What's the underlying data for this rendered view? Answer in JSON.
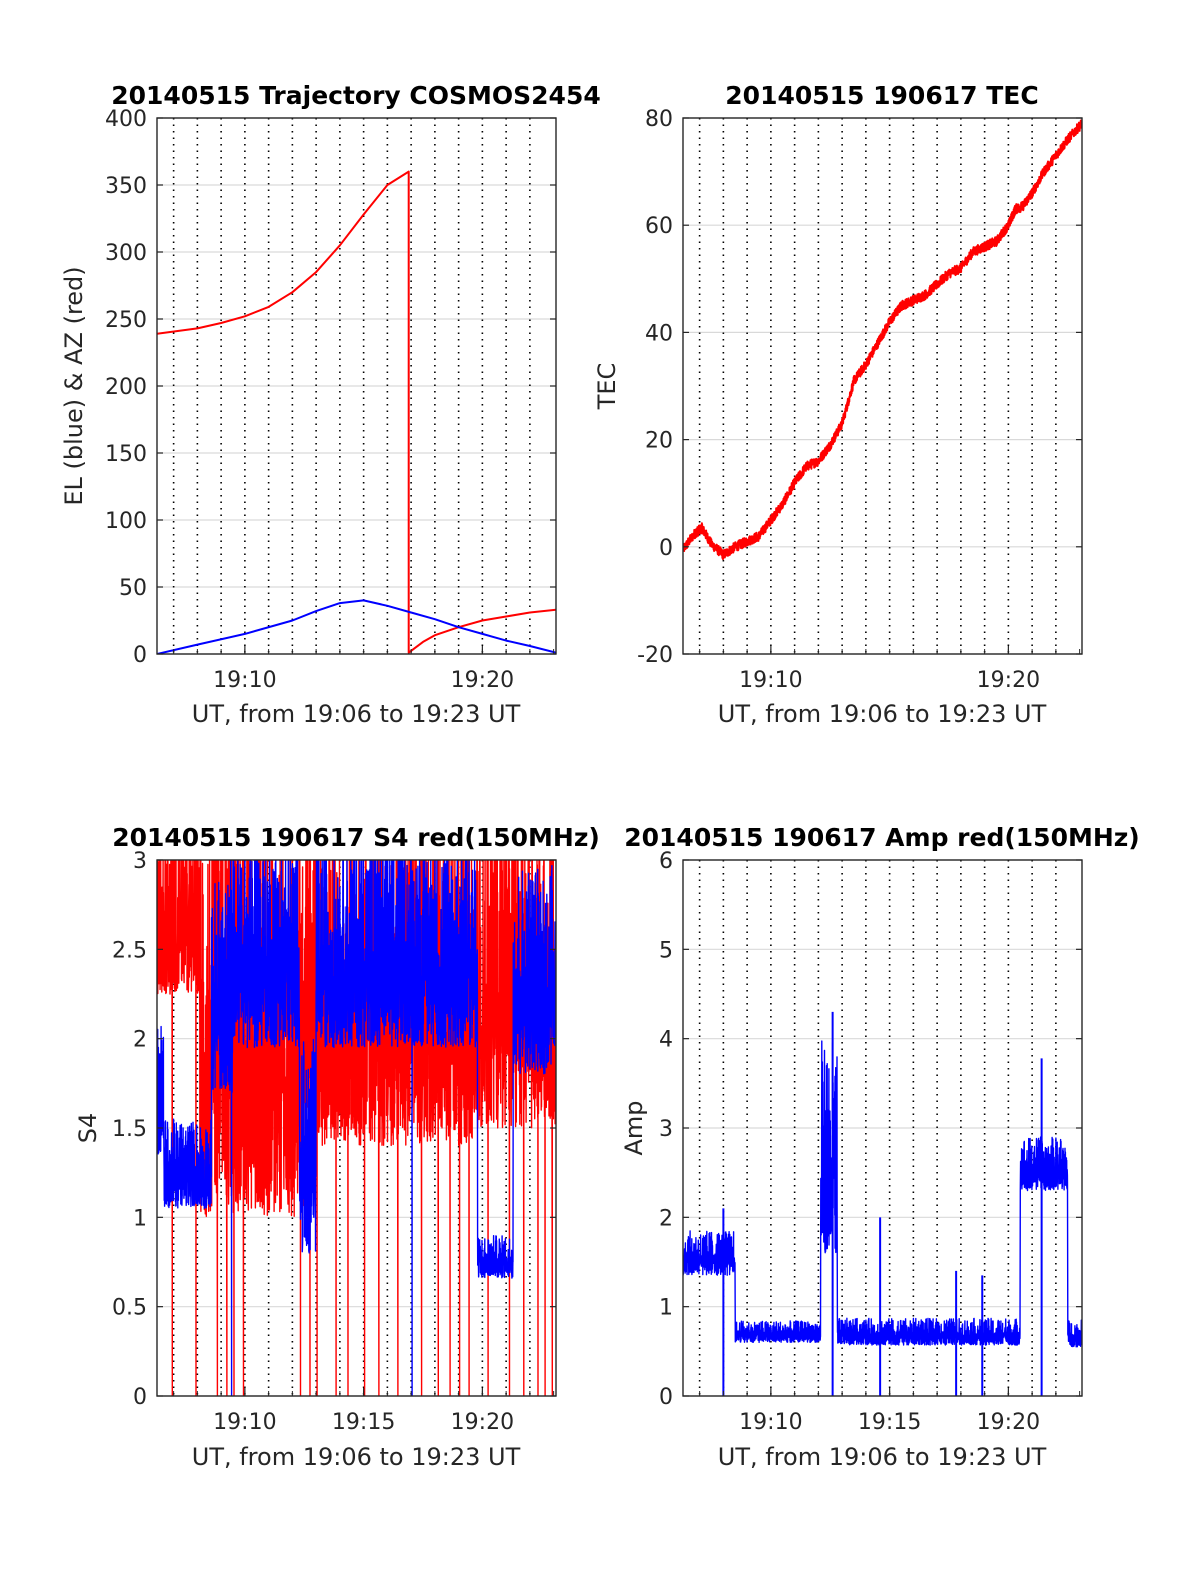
{
  "colors": {
    "red": "#ff0000",
    "blue": "#0000ff",
    "grid": "#d9d9d9",
    "axis": "#262626"
  },
  "chart_data": [
    {
      "id": "traj",
      "type": "line",
      "title": "20140515 Trajectory COSMOS2454",
      "xlabel": "UT, from 19:06 to 19:23 UT",
      "ylabel": "EL (blue) & AZ (red)",
      "xlim": [
        6.3,
        23.1
      ],
      "ylim": [
        0,
        400
      ],
      "yticks": [
        0,
        50,
        100,
        150,
        200,
        250,
        300,
        350,
        400
      ],
      "ytick_labels": [
        "0",
        "50",
        "100",
        "150",
        "200",
        "250",
        "300",
        "350",
        "400"
      ],
      "xticks": [
        10,
        20
      ],
      "xtick_labels": [
        "19:10",
        "19:20"
      ],
      "dotted_x": [
        7,
        8,
        9,
        10,
        11,
        12,
        13,
        14,
        15,
        16,
        17,
        18,
        19,
        20,
        21,
        22
      ],
      "grid": true,
      "series": [
        {
          "color": "red",
          "x": [
            6.3,
            8,
            9,
            10,
            11,
            12,
            13,
            14,
            15,
            16,
            16.9,
            16.9,
            17.5,
            18,
            19,
            20,
            21,
            22,
            23.1
          ],
          "y": [
            239,
            243,
            247,
            252,
            259,
            270,
            285,
            305,
            328,
            350,
            360,
            1,
            9,
            14,
            20,
            25,
            28,
            31,
            33
          ]
        },
        {
          "color": "blue",
          "x": [
            6.3,
            8,
            10,
            12,
            13,
            14,
            15,
            16,
            17,
            18,
            19,
            20,
            21,
            22,
            23.1
          ],
          "y": [
            0,
            7,
            15,
            25,
            32,
            38,
            40,
            36,
            31,
            26,
            20,
            15,
            10,
            6,
            1
          ]
        }
      ]
    },
    {
      "id": "tec",
      "type": "line",
      "title": "20140515 190617 TEC",
      "xlabel": "UT, from 19:06 to 19:23 UT",
      "ylabel": "TEC",
      "xlim": [
        6.3,
        23.1
      ],
      "ylim": [
        -20,
        80
      ],
      "yticks": [
        -20,
        0,
        20,
        40,
        60,
        80
      ],
      "ytick_labels": [
        "-20",
        "0",
        "20",
        "40",
        "60",
        "80"
      ],
      "xticks": [
        10,
        20
      ],
      "xtick_labels": [
        "19:10",
        "19:20"
      ],
      "dotted_x": [
        7,
        8,
        9,
        10,
        11,
        12,
        13,
        14,
        15,
        16,
        17,
        18,
        19,
        20,
        21,
        22
      ],
      "grid": true,
      "noise": 0.9,
      "series": [
        {
          "color": "red",
          "x": [
            6.3,
            6.8,
            7.1,
            7.5,
            8.0,
            8.5,
            9.0,
            9.5,
            10.0,
            10.5,
            11.0,
            11.5,
            12.0,
            12.5,
            13.0,
            13.5,
            14.0,
            14.5,
            15.0,
            15.5,
            16.0,
            16.5,
            17.0,
            17.5,
            18.0,
            18.5,
            19.0,
            19.5,
            20.0,
            20.3,
            20.6,
            21.0,
            21.5,
            22.0,
            22.5,
            23.1
          ],
          "y": [
            -0.5,
            2.5,
            3.5,
            0.5,
            -1.5,
            0,
            1,
            2,
            5,
            8,
            12,
            15,
            16,
            19,
            23,
            31,
            34,
            38,
            42,
            45,
            46,
            47,
            49,
            51,
            52,
            55,
            56,
            57,
            60,
            63,
            63.5,
            66,
            70,
            73,
            76,
            79
          ]
        }
      ]
    },
    {
      "id": "s4",
      "type": "line",
      "title": "20140515 190617 S4 red(150MHz)",
      "xlabel": "UT, from 19:06 to 19:23 UT",
      "ylabel": "S4",
      "xlim": [
        6.3,
        23.1
      ],
      "ylim": [
        0,
        3
      ],
      "yticks": [
        0,
        0.5,
        1,
        1.5,
        2,
        2.5,
        3
      ],
      "ytick_labels": [
        "0",
        "0.5",
        "1",
        "1.5",
        "2",
        "2.5",
        "3"
      ],
      "xticks": [
        10,
        15,
        20
      ],
      "xtick_labels": [
        "19:10",
        "19:15",
        "19:20"
      ],
      "dotted_x": [
        7,
        8,
        9,
        10,
        11,
        12,
        13,
        14,
        15,
        16,
        17,
        18,
        19,
        20,
        21,
        22
      ],
      "grid": true,
      "series": [
        {
          "color": "red",
          "segments": [
            {
              "x": [
                6.3,
                8.1
              ],
              "level": 2.75,
              "spread": 0.5
            },
            {
              "x": [
                8.1,
                12.5
              ],
              "level": 2.2,
              "spread": 1.2
            },
            {
              "x": [
                12.5,
                16.8
              ],
              "level": 2.3,
              "spread": 0.9
            },
            {
              "x": [
                16.8,
                19.8
              ],
              "level": 2.4,
              "spread": 1.0
            },
            {
              "x": [
                19.8,
                23.1
              ],
              "level": 2.4,
              "spread": 0.9
            }
          ],
          "drops": [
            6.9,
            7.9,
            8.8,
            9.2,
            9.5,
            9.9,
            12.3,
            12.7,
            13.0,
            13.8,
            14.3,
            15.0,
            15.6,
            16.4,
            17.4,
            18.1,
            18.6,
            19.0,
            19.4,
            20.2,
            21.1,
            21.7,
            22.3,
            22.6,
            22.9
          ]
        },
        {
          "color": "blue",
          "segments": [
            {
              "x": [
                6.3,
                6.6
              ],
              "level": 1.7,
              "spread": 0.4
            },
            {
              "x": [
                6.6,
                8.6
              ],
              "level": 1.3,
              "spread": 0.25
            },
            {
              "x": [
                8.6,
                9.5
              ],
              "level": 2.3,
              "spread": 0.6
            },
            {
              "x": [
                9.5,
                12.3
              ],
              "level": 2.55,
              "spread": 0.6
            },
            {
              "x": [
                12.3,
                13.0
              ],
              "level": 1.4,
              "spread": 0.6
            },
            {
              "x": [
                13.0,
                19.8
              ],
              "level": 2.55,
              "spread": 0.6
            },
            {
              "x": [
                19.8,
                21.3
              ],
              "level": 0.78,
              "spread": 0.12
            },
            {
              "x": [
                21.3,
                23.1
              ],
              "level": 2.4,
              "spread": 0.6
            }
          ],
          "drops": [
            9.4,
            17.0
          ]
        }
      ]
    },
    {
      "id": "amp",
      "type": "line",
      "title": "20140515 190617 Amp red(150MHz)",
      "xlabel": "UT, from 19:06 to 19:23 UT",
      "ylabel": "Amp",
      "xlim": [
        6.3,
        23.1
      ],
      "ylim": [
        0,
        6
      ],
      "yticks": [
        0,
        1,
        2,
        3,
        4,
        5,
        6
      ],
      "ytick_labels": [
        "0",
        "1",
        "2",
        "3",
        "4",
        "5",
        "6"
      ],
      "xticks": [
        10,
        15,
        20
      ],
      "xtick_labels": [
        "19:10",
        "19:15",
        "19:20"
      ],
      "dotted_x": [
        7,
        8,
        9,
        10,
        11,
        12,
        13,
        14,
        15,
        16,
        17,
        18,
        19,
        20,
        21,
        22
      ],
      "grid": true,
      "series": [
        {
          "color": "blue",
          "segments": [
            {
              "x": [
                6.3,
                8.5
              ],
              "level": 1.6,
              "spread": 0.25
            },
            {
              "x": [
                8.5,
                12.1
              ],
              "level": 0.72,
              "spread": 0.12
            },
            {
              "x": [
                12.1,
                12.8
              ],
              "level": 2.8,
              "spread": 1.2
            },
            {
              "x": [
                12.8,
                20.5
              ],
              "level": 0.72,
              "spread": 0.15
            },
            {
              "x": [
                20.5,
                22.5
              ],
              "level": 2.6,
              "spread": 0.3
            },
            {
              "x": [
                22.5,
                23.1
              ],
              "level": 0.7,
              "spread": 0.15
            }
          ],
          "spikes": [
            [
              8.0,
              2.1
            ],
            [
              12.6,
              4.3
            ],
            [
              14.6,
              2.0
            ],
            [
              17.8,
              1.4
            ],
            [
              18.9,
              1.35
            ],
            [
              21.4,
              3.78
            ]
          ]
        }
      ]
    }
  ]
}
